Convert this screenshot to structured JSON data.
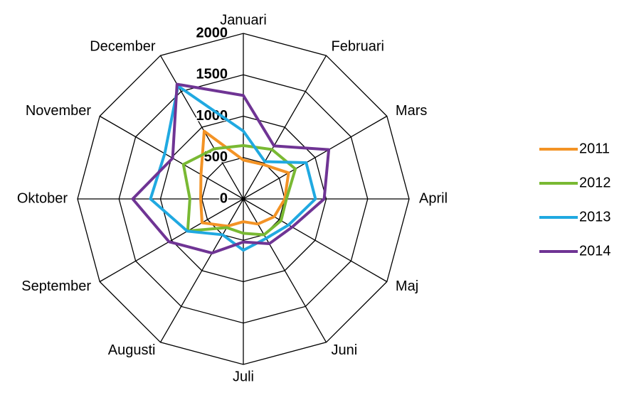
{
  "chart_data": {
    "type": "radar",
    "categories": [
      "Januari",
      "Februari",
      "Mars",
      "April",
      "Maj",
      "Juni",
      "Juli",
      "Augusti",
      "September",
      "Oktober",
      "November",
      "December"
    ],
    "series": [
      {
        "name": "2011",
        "color": "#f39325",
        "values": [
          470,
          480,
          630,
          500,
          430,
          350,
          275,
          380,
          575,
          515,
          590,
          945
        ]
      },
      {
        "name": "2012",
        "color": "#79b933",
        "values": [
          645,
          690,
          725,
          520,
          525,
          500,
          415,
          400,
          775,
          645,
          835,
          700
        ]
      },
      {
        "name": "2013",
        "color": "#20a9e1",
        "values": [
          820,
          520,
          875,
          870,
          630,
          550,
          620,
          500,
          780,
          1120,
          1095,
          1575
        ]
      },
      {
        "name": "2014",
        "color": "#6f3494",
        "values": [
          1250,
          740,
          1190,
          975,
          680,
          625,
          520,
          755,
          1035,
          1335,
          985,
          1600
        ]
      }
    ],
    "ylim": [
      0,
      2000
    ],
    "yticks": [
      0,
      500,
      1000,
      1500,
      2000
    ],
    "grid": true,
    "legend": "right"
  }
}
